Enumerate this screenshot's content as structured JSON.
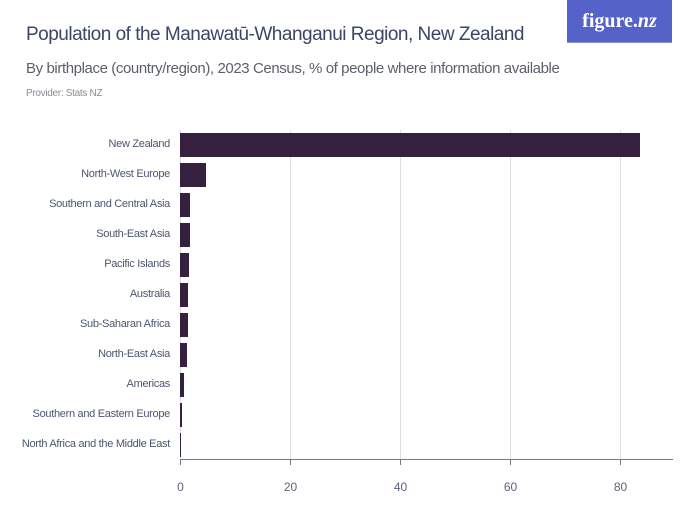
{
  "header": {
    "title": "Population of the Manawatū-Whanganui Region, New Zealand",
    "subtitle": "By birthplace (country/region), 2023 Census, % of people where information available",
    "provider": "Provider: Stats NZ"
  },
  "logo": {
    "text_main": "figure.",
    "text_nz": "nz",
    "bg_color": "#5563c9"
  },
  "colors": {
    "bar": "#35203f",
    "grid": "#dedede",
    "axis": "#777777"
  },
  "chart_data": {
    "type": "bar",
    "orientation": "horizontal",
    "title": "Population of the Manawatū-Whanganui Region, New Zealand",
    "subtitle": "By birthplace (country/region), 2023 Census, % of people where information available",
    "xlabel": "",
    "ylabel": "",
    "categories": [
      "New Zealand",
      "North-West Europe",
      "Southern and Central Asia",
      "South-East Asia",
      "Pacific Islands",
      "Australia",
      "Sub-Saharan Africa",
      "North-East Asia",
      "Americas",
      "Southern and Eastern Europe",
      "North Africa and the Middle East"
    ],
    "values": [
      83.6,
      4.7,
      1.9,
      1.8,
      1.6,
      1.5,
      1.4,
      1.2,
      0.8,
      0.3,
      0.2
    ],
    "xlim": [
      0,
      90
    ],
    "xticks": [
      "0",
      "20",
      "40",
      "60",
      "80"
    ],
    "grid": true,
    "legend": null
  }
}
